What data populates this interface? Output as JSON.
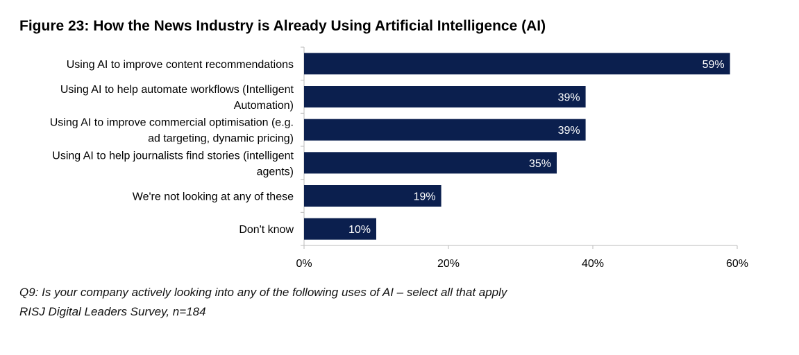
{
  "chart_data": {
    "type": "bar",
    "orientation": "horizontal",
    "title": "Figure 23: How the News Industry is Already Using Artificial Intelligence (AI)",
    "categories": [
      [
        "Using AI to improve content recommendations"
      ],
      [
        "Using AI to help automate workflows (Intelligent",
        "Automation)"
      ],
      [
        "Using AI to improve commercial optimisation (e.g.",
        "ad targeting, dynamic pricing)"
      ],
      [
        "Using AI to help journalists find stories (intelligent",
        "agents)"
      ],
      [
        "We're not looking at any of these"
      ],
      [
        "Don't know"
      ]
    ],
    "values": [
      59,
      39,
      39,
      35,
      19,
      10
    ],
    "data_labels": [
      "59%",
      "39%",
      "39%",
      "35%",
      "19%",
      "10%"
    ],
    "xlim": [
      0,
      60
    ],
    "xticks": [
      0,
      20,
      40,
      60
    ],
    "xtick_labels": [
      "0%",
      "20%",
      "40%",
      "60%"
    ],
    "grid": false,
    "bar_color": "#0b1f4e"
  },
  "notes": {
    "question": "Q9: Is your company actively looking into any of the following uses of AI – select all that apply",
    "source": "RISJ Digital Leaders Survey, n=184"
  }
}
